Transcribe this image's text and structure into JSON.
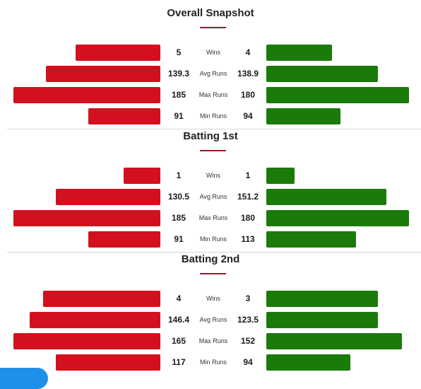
{
  "colors": {
    "left": "#d3101d",
    "right": "#1a7a0a",
    "accent": "#9b1b30"
  },
  "sections": [
    {
      "title": "Overall Snapshot",
      "rows": [
        {
          "label": "Wins",
          "left": "5",
          "right": "4",
          "left_fill": 0.575,
          "right_fill": 0.46
        },
        {
          "label": "Avg Runs",
          "left": "139.3",
          "right": "138.9",
          "left_fill": 0.78,
          "right_fill": 0.78
        },
        {
          "label": "Max Runs",
          "left": "185",
          "right": "180",
          "left_fill": 1.0,
          "right_fill": 1.0
        },
        {
          "label": "Min Runs",
          "left": "91",
          "right": "94",
          "left_fill": 0.49,
          "right_fill": 0.52
        }
      ]
    },
    {
      "title": "Batting 1st",
      "rows": [
        {
          "label": "Wins",
          "left": "1",
          "right": "1",
          "left_fill": 0.25,
          "right_fill": 0.2
        },
        {
          "label": "Avg Runs",
          "left": "130.5",
          "right": "151.2",
          "left_fill": 0.71,
          "right_fill": 0.84
        },
        {
          "label": "Max Runs",
          "left": "185",
          "right": "180",
          "left_fill": 1.0,
          "right_fill": 1.0
        },
        {
          "label": "Min Runs",
          "left": "91",
          "right": "113",
          "left_fill": 0.49,
          "right_fill": 0.63
        }
      ]
    },
    {
      "title": "Batting 2nd",
      "rows": [
        {
          "label": "Wins",
          "left": "4",
          "right": "3",
          "left_fill": 0.8,
          "right_fill": 0.78
        },
        {
          "label": "Avg Runs",
          "left": "146.4",
          "right": "123.5",
          "left_fill": 0.89,
          "right_fill": 0.78
        },
        {
          "label": "Max Runs",
          "left": "165",
          "right": "152",
          "left_fill": 1.0,
          "right_fill": 0.95
        },
        {
          "label": "Min Runs",
          "left": "117",
          "right": "94",
          "left_fill": 0.71,
          "right_fill": 0.59
        }
      ]
    }
  ]
}
